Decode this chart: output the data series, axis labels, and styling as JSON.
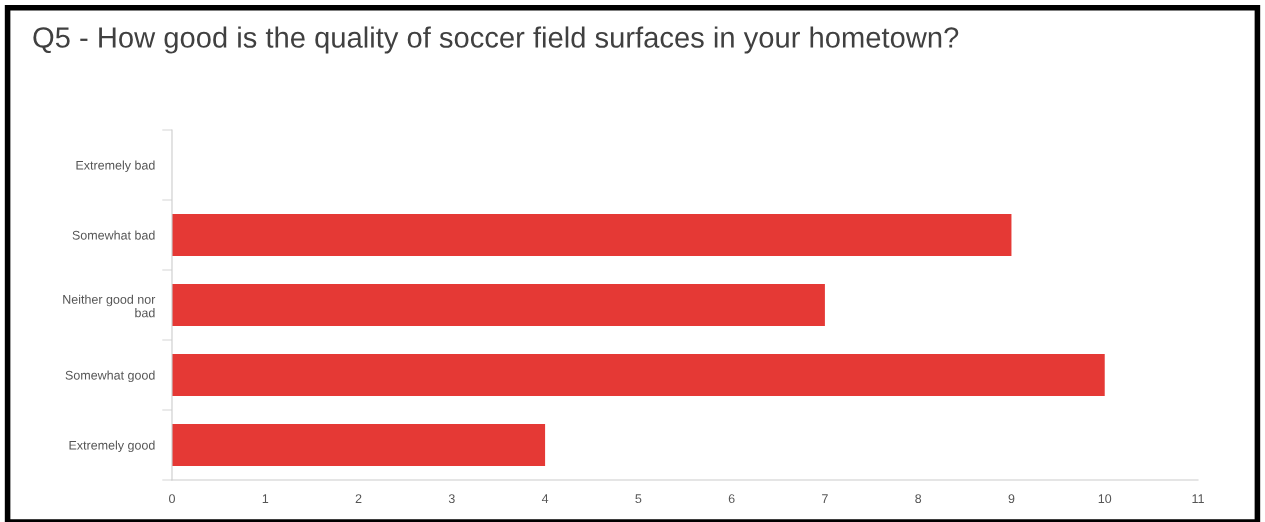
{
  "chart_data": {
    "type": "bar",
    "orientation": "horizontal",
    "title": "Q5 - How good is the quality of soccer field surfaces in your hometown?",
    "categories": [
      "Extremely bad",
      "Somewhat bad",
      "Neither good nor bad",
      "Somewhat good",
      "Extremely good"
    ],
    "values": [
      0,
      9,
      7,
      10,
      4
    ],
    "color": "#e53935",
    "xlim": [
      0,
      11
    ],
    "xticks": [
      0,
      1,
      2,
      3,
      4,
      5,
      6,
      7,
      8,
      9,
      10,
      11
    ],
    "grid": false
  }
}
